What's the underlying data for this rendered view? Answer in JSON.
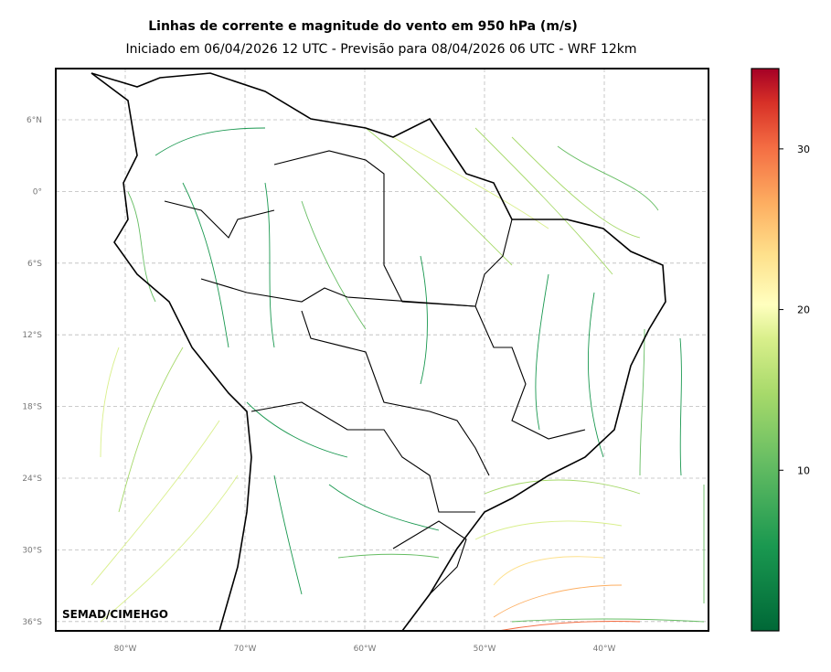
{
  "title": "Linhas de corrente e magnitude do vento em 950 hPa (m/s)",
  "subtitle": "Iniciado em 06/04/2026 12 UTC - Previsão para 08/04/2026 06 UTC - WRF 12km",
  "credit": "SEMAD/CIMEHGO",
  "lat_labels": [
    "6°N",
    "0°",
    "6°S",
    "12°S",
    "18°S",
    "24°S",
    "30°S",
    "36°S"
  ],
  "lon_labels": [
    "80°W",
    "70°W",
    "60°W",
    "50°W",
    "40°W"
  ],
  "colorbar": {
    "lim": [
      0,
      35
    ],
    "ticks": [
      10,
      20,
      30
    ]
  }
}
